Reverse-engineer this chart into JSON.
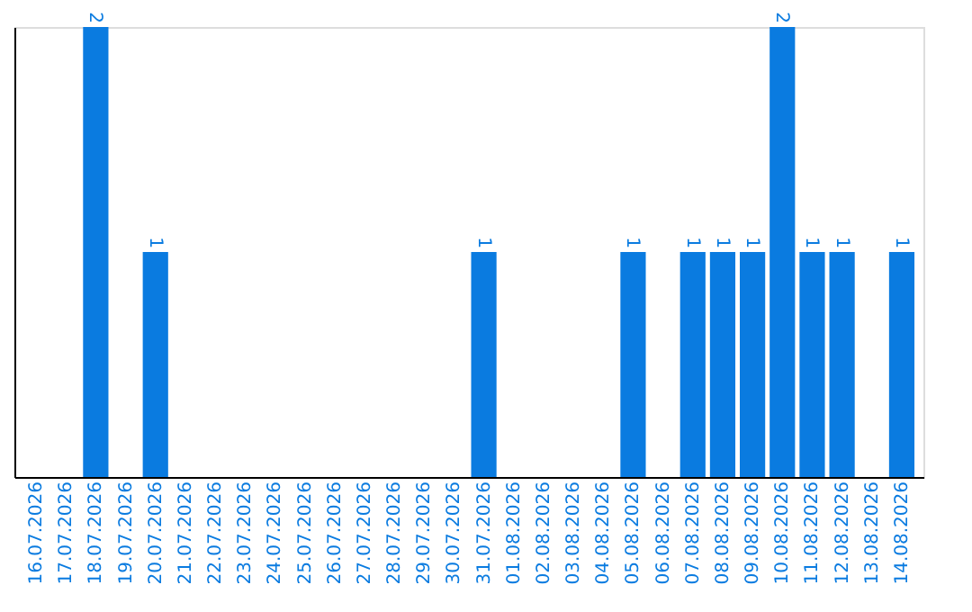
{
  "chart_data": {
    "type": "bar",
    "categories": [
      "16.07.2026",
      "17.07.2026",
      "18.07.2026",
      "19.07.2026",
      "20.07.2026",
      "21.07.2026",
      "22.07.2026",
      "23.07.2026",
      "24.07.2026",
      "25.07.2026",
      "26.07.2026",
      "27.07.2026",
      "28.07.2026",
      "29.07.2026",
      "30.07.2026",
      "31.07.2026",
      "01.08.2026",
      "02.08.2026",
      "03.08.2026",
      "04.08.2026",
      "05.08.2026",
      "06.08.2026",
      "07.08.2026",
      "08.08.2026",
      "09.08.2026",
      "10.08.2026",
      "11.08.2026",
      "12.08.2026",
      "13.08.2026",
      "14.08.2026"
    ],
    "values": [
      0,
      0,
      2,
      0,
      1,
      0,
      0,
      0,
      0,
      0,
      0,
      0,
      0,
      0,
      0,
      1,
      0,
      0,
      0,
      0,
      1,
      0,
      1,
      1,
      1,
      2,
      1,
      1,
      0,
      1
    ],
    "value_labels": [
      null,
      null,
      "2",
      null,
      "1",
      null,
      null,
      null,
      null,
      null,
      null,
      null,
      null,
      null,
      null,
      "1",
      null,
      null,
      null,
      null,
      "1",
      null,
      "1",
      "1",
      "1",
      "2",
      "1",
      "1",
      null,
      "1"
    ],
    "color": "#0a7be0",
    "tick_labels": "x",
    "grid": false
  }
}
